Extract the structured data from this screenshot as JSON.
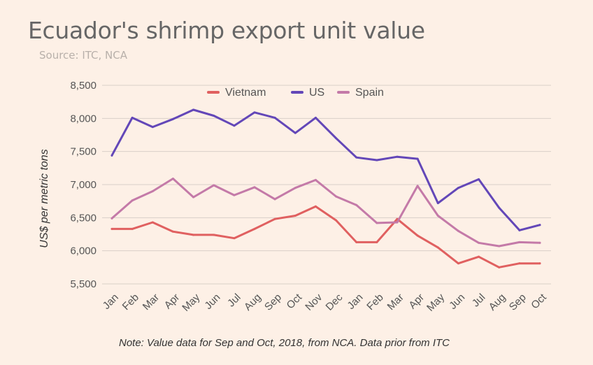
{
  "title": "Ecuador's shrimp export unit value",
  "subtitle": "Source: ITC, NCA",
  "note": "Note: Value data for Sep and Oct, 2018, from NCA. Data prior from ITC",
  "chart_data": {
    "type": "line",
    "title": "Ecuador's shrimp export unit value",
    "subtitle": "Source: ITC, NCA",
    "ylabel": "US$ per metric tons",
    "xlabel": "",
    "ylim": [
      5500,
      8500
    ],
    "yticks": [
      5500,
      6000,
      6500,
      7000,
      7500,
      8000,
      8500
    ],
    "ytick_labels": [
      "5,500",
      "6,000",
      "6,500",
      "7,000",
      "7,500",
      "8,000",
      "8,500"
    ],
    "grid": true,
    "legend_position": "top",
    "categories": [
      "Jan",
      "Feb",
      "Mar",
      "Apr",
      "May",
      "Jun",
      "Jul",
      "Aug",
      "Sep",
      "Oct",
      "Nov",
      "Dec",
      "Jan",
      "Feb",
      "Mar",
      "Apr",
      "May",
      "Jun",
      "Jul",
      "Aug",
      "Sep",
      "Oct"
    ],
    "series": [
      {
        "name": "Vietnam",
        "color": "#e06060",
        "values": [
          6330,
          6330,
          6430,
          6290,
          6240,
          6240,
          6190,
          6330,
          6480,
          6530,
          6670,
          6460,
          6130,
          6130,
          6480,
          6230,
          6050,
          5810,
          5910,
          5750,
          5810,
          5810
        ]
      },
      {
        "name": "US",
        "color": "#6347b8",
        "values": [
          7440,
          8010,
          7870,
          7990,
          8130,
          8040,
          7890,
          8090,
          8010,
          7780,
          8010,
          7700,
          7410,
          7370,
          7420,
          7390,
          6720,
          6950,
          7080,
          6650,
          6310,
          6390
        ]
      },
      {
        "name": "Spain",
        "color": "#c47aa8",
        "values": [
          6490,
          6760,
          6900,
          7090,
          6810,
          6990,
          6840,
          6960,
          6780,
          6950,
          7070,
          6820,
          6690,
          6420,
          6430,
          6980,
          6530,
          6300,
          6120,
          6070,
          6130,
          6120
        ]
      }
    ]
  }
}
